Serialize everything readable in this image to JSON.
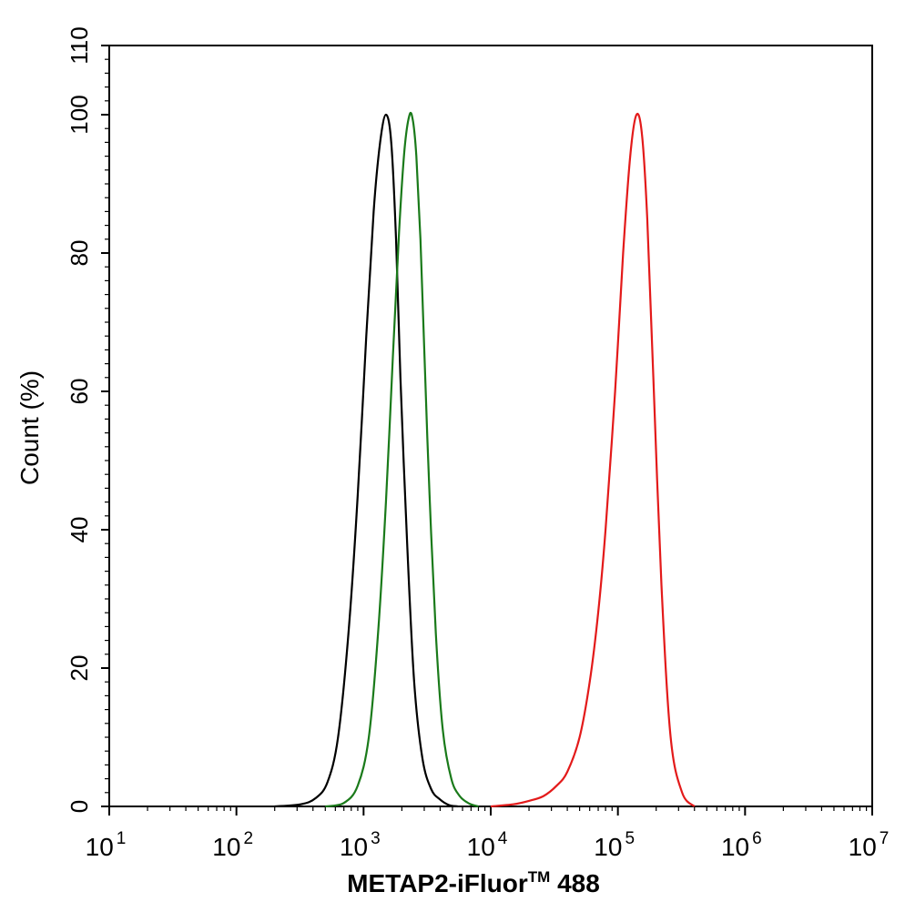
{
  "chart_data": {
    "type": "line",
    "xlabel": {
      "main": "METAP2-iFluor",
      "sup": "TM",
      "suffix": " 488"
    },
    "ylabel": "Count  (%)",
    "x_scale": "log",
    "xlim": [
      10,
      10000000
    ],
    "ylim": [
      0,
      110
    ],
    "x_ticks": [
      {
        "base": "10",
        "exp": "1",
        "value": 10
      },
      {
        "base": "10",
        "exp": "2",
        "value": 100
      },
      {
        "base": "10",
        "exp": "3",
        "value": 1000
      },
      {
        "base": "10",
        "exp": "4",
        "value": 10000
      },
      {
        "base": "10",
        "exp": "5",
        "value": 100000
      },
      {
        "base": "10",
        "exp": "6",
        "value": 1000000
      },
      {
        "base": "10",
        "exp": "7",
        "value": 10000000
      }
    ],
    "y_ticks": [
      "0",
      "20",
      "40",
      "60",
      "80",
      "100",
      "110"
    ],
    "grid": false,
    "series": [
      {
        "color": "#000000",
        "x": [
          200,
          320,
          420,
          520,
          630,
          760,
          900,
          1050,
          1200,
          1350,
          1500,
          1650,
          1800,
          1950,
          2200,
          2500,
          2900,
          3400,
          4000,
          4700,
          5500
        ],
        "y": [
          0,
          0.3,
          1.2,
          3.5,
          10,
          25,
          45,
          68,
          86,
          96,
          100,
          96,
          82,
          62,
          38,
          18,
          7,
          2.5,
          1,
          0.2,
          0
        ]
      },
      {
        "color": "#1a7a1a",
        "x": [
          500,
          700,
          900,
          1100,
          1300,
          1500,
          1700,
          1900,
          2100,
          2300,
          2450,
          2600,
          2800,
          3000,
          3300,
          3700,
          4200,
          4900,
          5700,
          6800,
          8000
        ],
        "y": [
          0,
          0.5,
          3,
          10,
          25,
          44,
          65,
          83,
          95,
          100,
          99,
          94,
          82,
          66,
          45,
          25,
          11,
          4,
          1.5,
          0.4,
          0
        ]
      },
      {
        "color": "#e31a1a",
        "x": [
          10000,
          15000,
          20000,
          26000,
          33000,
          40000,
          50000,
          60000,
          70000,
          80000,
          95000,
          110000,
          125000,
          140000,
          155000,
          170000,
          190000,
          220000,
          260000,
          320000,
          400000
        ],
        "y": [
          0,
          0.3,
          0.8,
          1.5,
          3,
          5,
          10,
          18,
          28,
          40,
          60,
          80,
          94,
          100,
          97,
          85,
          62,
          32,
          10,
          2,
          0
        ]
      }
    ]
  }
}
